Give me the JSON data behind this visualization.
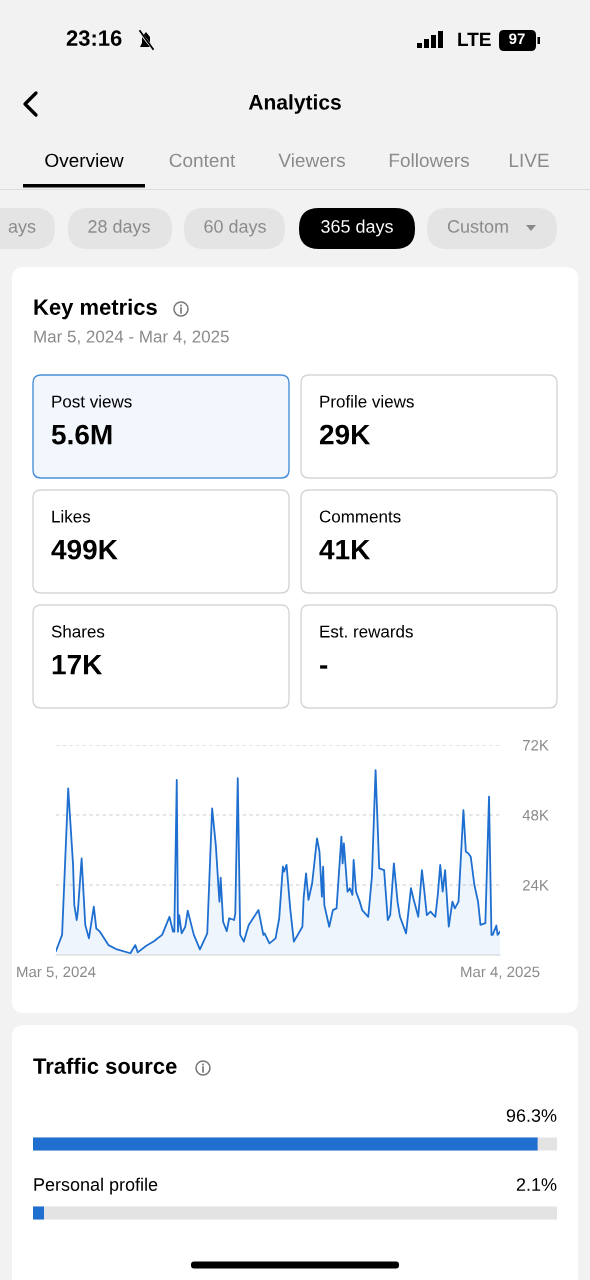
{
  "chart_data": [
    {
      "type": "other",
      "title": "Analytics",
      "annotations": [
        "23:16",
        "LTE",
        "97",
        "Overview",
        "Content",
        "Viewers",
        "Followers",
        "LIVE",
        "ays",
        "28 days",
        "60 days",
        "365 days",
        "Custom"
      ]
    },
    {
      "type": "other",
      "title": "Key metrics",
      "subtitle": "Mar 5, 2024 - Mar 4, 2025",
      "categories": [
        "Post views",
        "Profile views",
        "Likes",
        "Comments",
        "Shares",
        "Est. rewards"
      ],
      "value_labels": [
        "5.6M",
        "29K",
        "499K",
        "41K",
        "17K",
        "-"
      ]
    },
    {
      "type": "area",
      "color": "#1f6fd0",
      "grid": "y",
      "x": [
        "2024-03-05",
        "2024-03-10",
        "2024-03-15",
        "2024-03-19",
        "2024-03-20",
        "2024-03-22",
        "2024-03-23",
        "2024-03-26",
        "2024-03-29",
        "2024-04-01",
        "2024-04-05",
        "2024-04-07",
        "2024-04-10",
        "2024-04-17",
        "2024-04-24",
        "2024-05-05",
        "2024-05-09",
        "2024-05-11",
        "2024-05-18",
        "2024-05-24",
        "2024-05-31",
        "2024-06-06",
        "2024-06-09",
        "2024-06-10",
        "2024-06-12",
        "2024-06-13",
        "2024-06-14",
        "2024-06-16",
        "2024-06-19",
        "2024-06-21",
        "2024-06-26",
        "2024-07-01",
        "2024-07-07",
        "2024-07-11",
        "2024-07-14",
        "2024-07-16",
        "2024-07-17",
        "2024-07-18",
        "2024-07-20",
        "2024-07-23",
        "2024-07-25",
        "2024-07-29",
        "2024-07-30",
        "2024-08-01",
        "2024-08-03",
        "2024-08-06",
        "2024-08-10",
        "2024-08-18",
        "2024-08-22",
        "2024-08-23",
        "2024-08-27",
        "2024-09-01",
        "2024-09-04",
        "2024-09-07",
        "2024-09-08",
        "2024-09-10",
        "2024-09-13",
        "2024-09-16",
        "2024-09-23",
        "2024-09-24",
        "2024-09-26",
        "2024-09-28",
        "2024-10-01",
        "2024-10-05",
        "2024-10-07",
        "2024-10-09",
        "2024-10-10",
        "2024-10-11",
        "2024-10-15",
        "2024-10-18",
        "2024-10-21",
        "2024-10-25",
        "2024-10-26",
        "2024-10-27",
        "2024-10-30",
        "2024-11-01",
        "2024-11-03",
        "2024-11-04",
        "2024-11-06",
        "2024-11-09",
        "2024-11-11",
        "2024-11-16",
        "2024-11-19",
        "2024-11-22",
        "2024-11-25",
        "2024-11-29",
        "2024-12-02",
        "2024-12-04",
        "2024-12-07",
        "2024-12-10",
        "2024-12-12",
        "2024-12-17",
        "2024-12-21",
        "2024-12-23",
        "2024-12-27",
        "2024-12-30",
        "2025-01-01",
        "2025-01-03",
        "2025-01-06",
        "2025-01-10",
        "2025-01-12",
        "2025-01-14",
        "2025-01-16",
        "2025-01-18",
        "2025-01-21",
        "2025-01-24",
        "2025-01-26",
        "2025-01-29",
        "2025-02-02",
        "2025-02-04",
        "2025-02-06",
        "2025-02-08",
        "2025-02-11",
        "2025-02-14",
        "2025-02-16",
        "2025-02-20",
        "2025-02-23",
        "2025-02-25",
        "2025-02-26",
        "2025-03-01",
        "2025-03-02",
        "2025-03-04"
      ],
      "values": [
        1400,
        6900,
        57100,
        30900,
        17100,
        12000,
        15400,
        33100,
        10300,
        5700,
        16600,
        9100,
        8000,
        3400,
        1900,
        600,
        3400,
        900,
        3200,
        4600,
        6900,
        13100,
        8000,
        8000,
        60000,
        8000,
        13700,
        7400,
        9700,
        15200,
        6900,
        1900,
        7400,
        50300,
        37700,
        24600,
        18300,
        26500,
        11400,
        8200,
        12600,
        12000,
        14300,
        60600,
        6900,
        4600,
        10300,
        15400,
        6900,
        7400,
        4000,
        5700,
        12600,
        30300,
        28600,
        30900,
        16000,
        4600,
        9700,
        19400,
        28000,
        18900,
        24600,
        40000,
        35400,
        20000,
        30300,
        17100,
        9700,
        15400,
        16000,
        40600,
        31400,
        38300,
        21700,
        22900,
        20600,
        32600,
        21700,
        18300,
        15400,
        13100,
        26900,
        63400,
        29700,
        29100,
        12000,
        13700,
        31400,
        18300,
        13100,
        7400,
        22900,
        19400,
        13100,
        29100,
        21700,
        13700,
        14900,
        13100,
        20600,
        30900,
        21700,
        29100,
        9700,
        18300,
        16000,
        18300,
        49700,
        35400,
        34900,
        33700,
        24000,
        18300,
        10300,
        10900,
        54300,
        6900,
        6900,
        10100,
        6900,
        8000
      ],
      "xlim": [
        "2024-03-05",
        "2025-03-04"
      ],
      "xticks": [
        {
          "value": "2024-03-05",
          "label": "Mar 5, 2024"
        },
        {
          "value": "2025-03-04",
          "label": "Mar 4, 2025"
        }
      ],
      "ylim": [
        0,
        72000
      ],
      "yticks": [
        {
          "value": 24000,
          "label": "24K"
        },
        {
          "value": 48000,
          "label": "48K"
        },
        {
          "value": 72000,
          "label": "72K"
        }
      ]
    },
    {
      "type": "bar",
      "orientation": "horizontal",
      "title": "Traffic source",
      "categories": [
        null,
        "Personal profile"
      ],
      "values": [
        96.3,
        2.1
      ],
      "value_labels": [
        "96.3%",
        "2.1%"
      ],
      "color": "#1f6fd0",
      "xlim": [
        0,
        100
      ],
      "tick_labels": false
    }
  ]
}
